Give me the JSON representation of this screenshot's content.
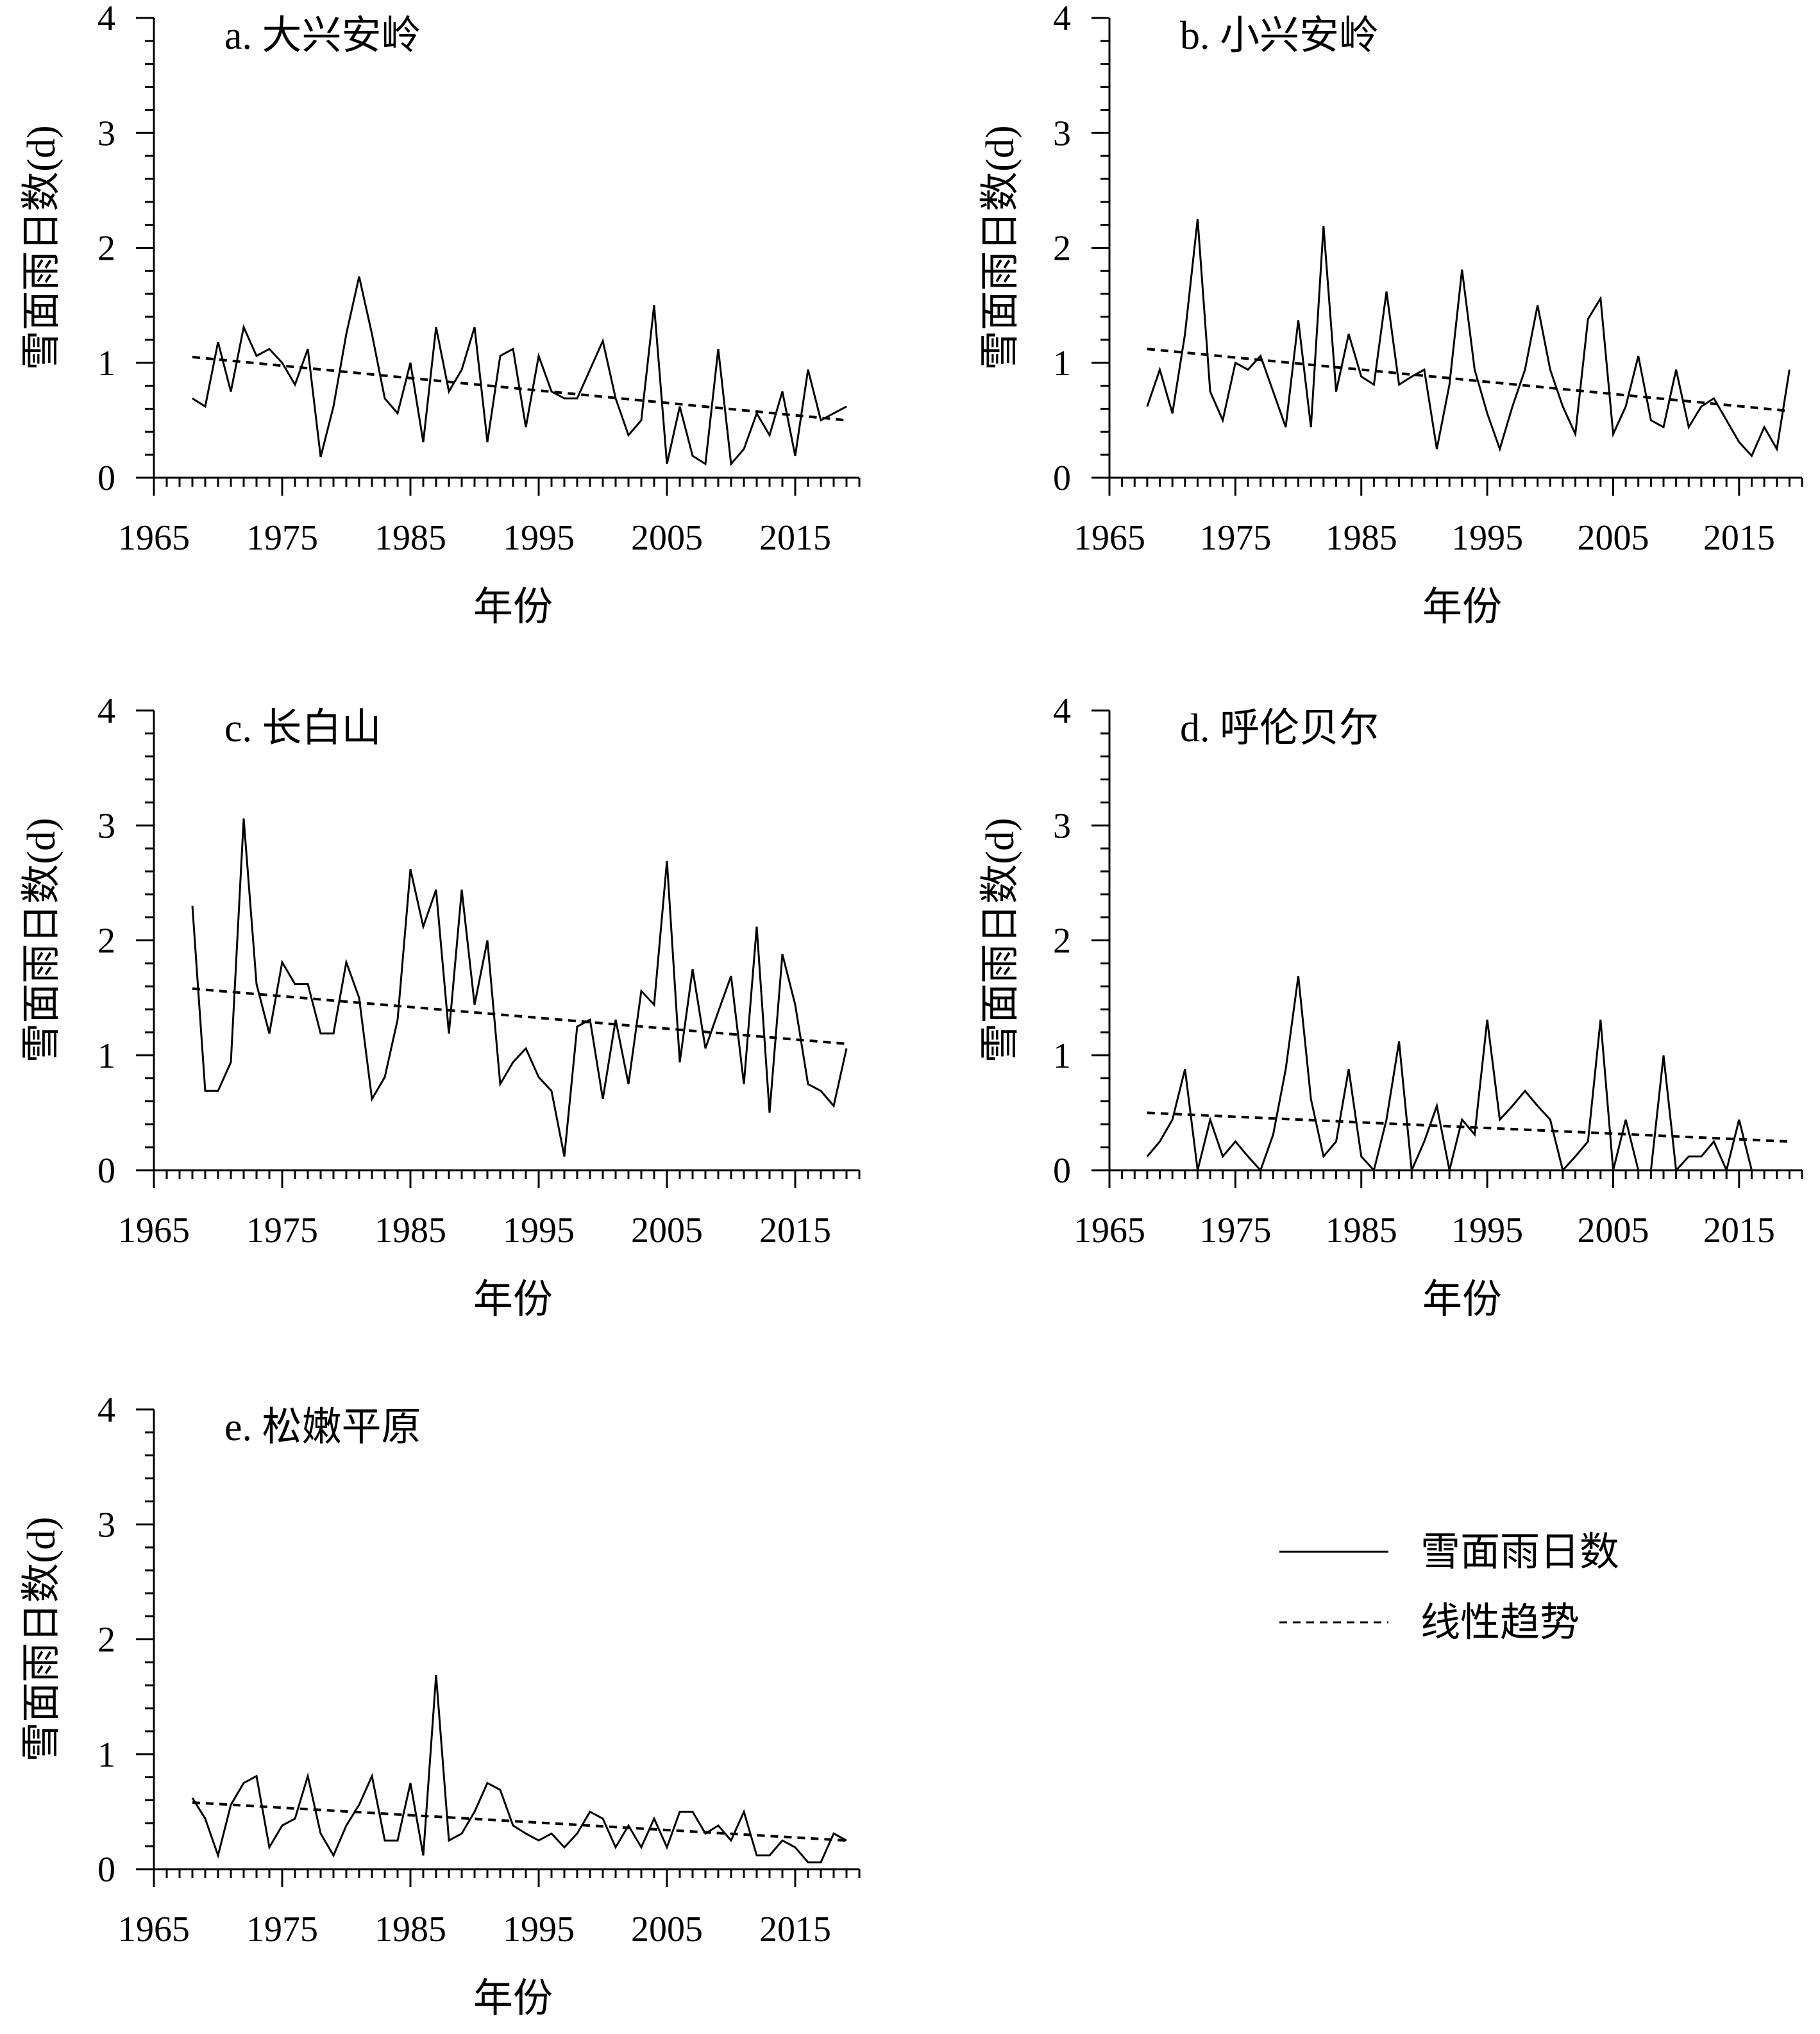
{
  "chart_data": [
    {
      "type": "line",
      "title": "a. 大兴安岭",
      "xlabel": "年份",
      "ylabel": "雪面雨日数(d)",
      "xlim": [
        1965,
        2020
      ],
      "ylim": [
        0,
        4
      ],
      "xticks": [
        "1965",
        "1975",
        "1985",
        "1995",
        "2005",
        "2015"
      ],
      "yticks": [
        "0",
        "1",
        "2",
        "3",
        "4"
      ],
      "series": [
        {
          "name": "雪面雨日数",
          "style": "solid",
          "x": [
            1968,
            1969,
            1970,
            1971,
            1972,
            1973,
            1974,
            1975,
            1976,
            1977,
            1978,
            1979,
            1980,
            1981,
            1982,
            1983,
            1984,
            1985,
            1986,
            1987,
            1988,
            1989,
            1990,
            1991,
            1992,
            1993,
            1994,
            1995,
            1996,
            1997,
            1998,
            1999,
            2000,
            2001,
            2002,
            2003,
            2004,
            2005,
            2006,
            2007,
            2008,
            2009,
            2010,
            2011,
            2012,
            2013,
            2014,
            2015,
            2016,
            2017,
            2018,
            2019
          ],
          "values": [
            0.69,
            0.62,
            1.18,
            0.75,
            1.31,
            1.06,
            1.12,
            1.0,
            0.81,
            1.12,
            0.18,
            0.62,
            1.25,
            1.75,
            1.25,
            0.69,
            0.56,
            1.0,
            0.31,
            1.31,
            0.75,
            0.94,
            1.31,
            0.31,
            1.06,
            1.12,
            0.44,
            1.06,
            0.75,
            0.69,
            0.69,
            0.94,
            1.19,
            0.69,
            0.37,
            0.5,
            1.5,
            0.12,
            0.62,
            0.19,
            0.12,
            1.12,
            0.12,
            0.25,
            0.56,
            0.37,
            0.75,
            0.19,
            0.94,
            0.5,
            0.56,
            0.62
          ]
        },
        {
          "name": "线性趋势",
          "style": "dashed",
          "x": [
            1968,
            2019
          ],
          "values": [
            1.05,
            0.5
          ]
        }
      ]
    },
    {
      "type": "line",
      "title": "b. 小兴安岭",
      "xlabel": "年份",
      "ylabel": "雪面雨日数(d)",
      "xlim": [
        1965,
        2020
      ],
      "ylim": [
        0,
        4
      ],
      "xticks": [
        "1965",
        "1975",
        "1985",
        "1995",
        "2005",
        "2015"
      ],
      "yticks": [
        "0",
        "1",
        "2",
        "3",
        "4"
      ],
      "series": [
        {
          "name": "雪面雨日数",
          "style": "solid",
          "x": [
            1968,
            1969,
            1970,
            1971,
            1972,
            1973,
            1974,
            1975,
            1976,
            1977,
            1978,
            1979,
            1980,
            1981,
            1982,
            1983,
            1984,
            1985,
            1986,
            1987,
            1988,
            1989,
            1990,
            1991,
            1992,
            1993,
            1994,
            1995,
            1996,
            1997,
            1998,
            1999,
            2000,
            2001,
            2002,
            2003,
            2004,
            2005,
            2006,
            2007,
            2008,
            2009,
            2010,
            2011,
            2012,
            2013,
            2014,
            2015,
            2016,
            2017,
            2018,
            2019
          ],
          "values": [
            0.62,
            0.94,
            0.56,
            1.25,
            2.25,
            0.75,
            0.5,
            1.0,
            0.94,
            1.06,
            0.75,
            0.44,
            1.37,
            0.44,
            2.19,
            0.75,
            1.25,
            0.88,
            0.81,
            1.62,
            0.81,
            0.88,
            0.94,
            0.25,
            0.81,
            1.81,
            0.94,
            0.56,
            0.25,
            0.62,
            0.94,
            1.5,
            0.94,
            0.62,
            0.38,
            1.38,
            1.56,
            0.38,
            0.62,
            1.06,
            0.5,
            0.44,
            0.94,
            0.44,
            0.62,
            0.69,
            0.5,
            0.31,
            0.19,
            0.44,
            0.25,
            0.94
          ]
        },
        {
          "name": "线性趋势",
          "style": "dashed",
          "x": [
            1968,
            2019
          ],
          "values": [
            1.12,
            0.58
          ]
        }
      ]
    },
    {
      "type": "line",
      "title": "c. 长白山",
      "xlabel": "年份",
      "ylabel": "雪面雨日数(d)",
      "xlim": [
        1965,
        2020
      ],
      "ylim": [
        0,
        4
      ],
      "xticks": [
        "1965",
        "1975",
        "1985",
        "1995",
        "2005",
        "2015"
      ],
      "yticks": [
        "0",
        "1",
        "2",
        "3",
        "4"
      ],
      "series": [
        {
          "name": "雪面雨日数",
          "style": "solid",
          "x": [
            1968,
            1969,
            1970,
            1971,
            1972,
            1973,
            1974,
            1975,
            1976,
            1977,
            1978,
            1979,
            1980,
            1981,
            1982,
            1983,
            1984,
            1985,
            1986,
            1987,
            1988,
            1989,
            1990,
            1991,
            1992,
            1993,
            1994,
            1995,
            1996,
            1997,
            1998,
            1999,
            2000,
            2001,
            2002,
            2003,
            2004,
            2005,
            2006,
            2007,
            2008,
            2009,
            2010,
            2011,
            2012,
            2013,
            2014,
            2015,
            2016,
            2017,
            2018,
            2019
          ],
          "values": [
            2.3,
            0.69,
            0.69,
            0.94,
            3.06,
            1.62,
            1.19,
            1.81,
            1.62,
            1.62,
            1.19,
            1.19,
            1.81,
            1.5,
            0.62,
            0.81,
            1.31,
            2.62,
            2.12,
            2.44,
            1.19,
            2.44,
            1.44,
            2.0,
            0.75,
            0.94,
            1.06,
            0.81,
            0.69,
            0.12,
            1.25,
            1.31,
            0.62,
            1.31,
            0.75,
            1.56,
            1.44,
            2.69,
            0.94,
            1.75,
            1.06,
            1.38,
            1.69,
            0.75,
            2.12,
            0.5,
            1.88,
            1.44,
            0.75,
            0.69,
            0.56,
            1.06
          ]
        },
        {
          "name": "线性趋势",
          "style": "dashed",
          "x": [
            1968,
            2019
          ],
          "values": [
            1.58,
            1.1
          ]
        }
      ]
    },
    {
      "type": "line",
      "title": "d. 呼伦贝尔",
      "xlabel": "年份",
      "ylabel": "雪面雨日数(d)",
      "xlim": [
        1965,
        2020
      ],
      "ylim": [
        0,
        4
      ],
      "xticks": [
        "1965",
        "1975",
        "1985",
        "1995",
        "2005",
        "2015"
      ],
      "yticks": [
        "0",
        "1",
        "2",
        "3",
        "4"
      ],
      "series": [
        {
          "name": "雪面雨日数",
          "style": "solid",
          "x": [
            1968,
            1969,
            1970,
            1971,
            1972,
            1973,
            1974,
            1975,
            1976,
            1977,
            1978,
            1979,
            1980,
            1981,
            1982,
            1983,
            1984,
            1985,
            1986,
            1987,
            1988,
            1989,
            1990,
            1991,
            1992,
            1993,
            1994,
            1995,
            1996,
            1997,
            1998,
            1999,
            2000,
            2001,
            2002,
            2003,
            2004,
            2005,
            2006,
            2007,
            2008,
            2009,
            2010,
            2011,
            2012,
            2013,
            2014,
            2015,
            2016,
            2017,
            2018,
            2019
          ],
          "values": [
            0.12,
            0.25,
            0.44,
            0.88,
            0.0,
            0.44,
            0.12,
            0.25,
            0.12,
            0.0,
            0.31,
            0.88,
            1.69,
            0.62,
            0.12,
            0.25,
            0.88,
            0.12,
            0.0,
            0.44,
            1.12,
            0.0,
            0.25,
            0.56,
            0.0,
            0.44,
            0.31,
            1.31,
            0.44,
            0.56,
            0.69,
            0.56,
            0.44,
            0.0,
            0.12,
            0.25,
            1.31,
            0.0,
            0.44,
            0.0,
            0.0,
            1.0,
            0.0,
            0.12,
            0.12,
            0.25,
            0.0,
            0.44,
            0.0,
            0.0,
            0.0,
            0.0
          ]
        },
        {
          "name": "线性趋势",
          "style": "dashed",
          "x": [
            1968,
            2019
          ],
          "values": [
            0.5,
            0.25
          ]
        }
      ]
    },
    {
      "type": "line",
      "title": "e. 松嫩平原",
      "xlabel": "年份",
      "ylabel": "雪面雨日数(d)",
      "xlim": [
        1965,
        2020
      ],
      "ylim": [
        0,
        4
      ],
      "xticks": [
        "1965",
        "1975",
        "1985",
        "1995",
        "2005",
        "2015"
      ],
      "yticks": [
        "0",
        "1",
        "2",
        "3",
        "4"
      ],
      "series": [
        {
          "name": "雪面雨日数",
          "style": "solid",
          "x": [
            1968,
            1969,
            1970,
            1971,
            1972,
            1973,
            1974,
            1975,
            1976,
            1977,
            1978,
            1979,
            1980,
            1981,
            1982,
            1983,
            1984,
            1985,
            1986,
            1987,
            1988,
            1989,
            1990,
            1991,
            1992,
            1993,
            1994,
            1995,
            1996,
            1997,
            1998,
            1999,
            2000,
            2001,
            2002,
            2003,
            2004,
            2005,
            2006,
            2007,
            2008,
            2009,
            2010,
            2011,
            2012,
            2013,
            2014,
            2015,
            2016,
            2017,
            2018,
            2019
          ],
          "values": [
            0.62,
            0.44,
            0.12,
            0.56,
            0.75,
            0.81,
            0.19,
            0.38,
            0.44,
            0.81,
            0.31,
            0.12,
            0.38,
            0.56,
            0.81,
            0.25,
            0.25,
            0.75,
            0.12,
            1.69,
            0.25,
            0.31,
            0.5,
            0.75,
            0.69,
            0.38,
            0.31,
            0.25,
            0.31,
            0.19,
            0.31,
            0.5,
            0.44,
            0.19,
            0.38,
            0.19,
            0.44,
            0.19,
            0.5,
            0.5,
            0.31,
            0.38,
            0.25,
            0.5,
            0.12,
            0.12,
            0.25,
            0.19,
            0.06,
            0.06,
            0.31,
            0.25
          ]
        },
        {
          "name": "线性趋势",
          "style": "dashed",
          "x": [
            1968,
            2019
          ],
          "values": [
            0.58,
            0.25
          ]
        }
      ]
    }
  ],
  "legend": {
    "position": "right of panel e",
    "entries": [
      {
        "label": "雪面雨日数",
        "style": "solid"
      },
      {
        "label": "线性趋势",
        "style": "dashed"
      }
    ]
  }
}
